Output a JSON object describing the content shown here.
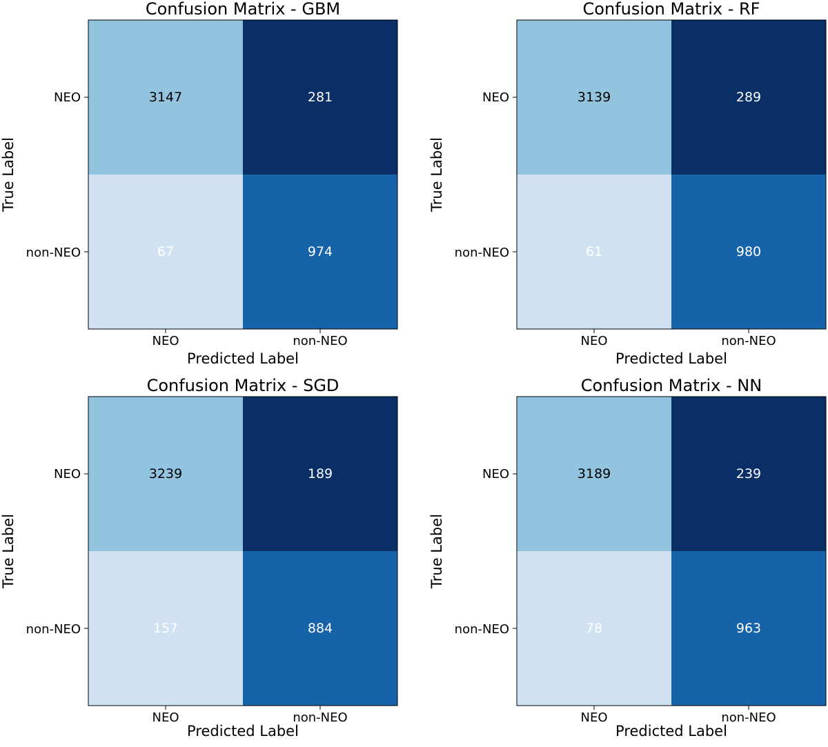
{
  "chart_data": [
    {
      "type": "heatmap",
      "title": "Confusion Matrix - GBM",
      "xlabel": "Predicted Label",
      "ylabel": "True Label",
      "x_ticks": [
        "NEO",
        "non-NEO"
      ],
      "y_ticks": [
        "NEO",
        "non-NEO"
      ],
      "colormap": "Blues",
      "values": [
        [
          3147,
          281
        ],
        [
          67,
          974
        ]
      ],
      "cell_colors": [
        [
          "#93c4df",
          "#0a2e66"
        ],
        [
          "#d0e1f2",
          "#1763aa"
        ]
      ]
    },
    {
      "type": "heatmap",
      "title": "Confusion Matrix - RF",
      "xlabel": "Predicted Label",
      "ylabel": "True Label",
      "x_ticks": [
        "NEO",
        "non-NEO"
      ],
      "y_ticks": [
        "NEO",
        "non-NEO"
      ],
      "colormap": "Blues",
      "values": [
        [
          3139,
          289
        ],
        [
          61,
          980
        ]
      ],
      "cell_colors": [
        [
          "#93c4df",
          "#0a2e66"
        ],
        [
          "#d0e1f2",
          "#1763aa"
        ]
      ]
    },
    {
      "type": "heatmap",
      "title": "Confusion Matrix - SGD",
      "xlabel": "Predicted Label",
      "ylabel": "True Label",
      "x_ticks": [
        "NEO",
        "non-NEO"
      ],
      "y_ticks": [
        "NEO",
        "non-NEO"
      ],
      "colormap": "Blues",
      "values": [
        [
          3239,
          189
        ],
        [
          157,
          884
        ]
      ],
      "cell_colors": [
        [
          "#93c4df",
          "#0a2e66"
        ],
        [
          "#d0e1f2",
          "#1763aa"
        ]
      ]
    },
    {
      "type": "heatmap",
      "title": "Confusion Matrix - NN",
      "xlabel": "Predicted Label",
      "ylabel": "True Label",
      "x_ticks": [
        "NEO",
        "non-NEO"
      ],
      "y_ticks": [
        "NEO",
        "non-NEO"
      ],
      "colormap": "Blues",
      "values": [
        [
          3189,
          239
        ],
        [
          78,
          963
        ]
      ],
      "cell_colors": [
        [
          "#93c4df",
          "#0a2e66"
        ],
        [
          "#d0e1f2",
          "#1763aa"
        ]
      ]
    }
  ]
}
